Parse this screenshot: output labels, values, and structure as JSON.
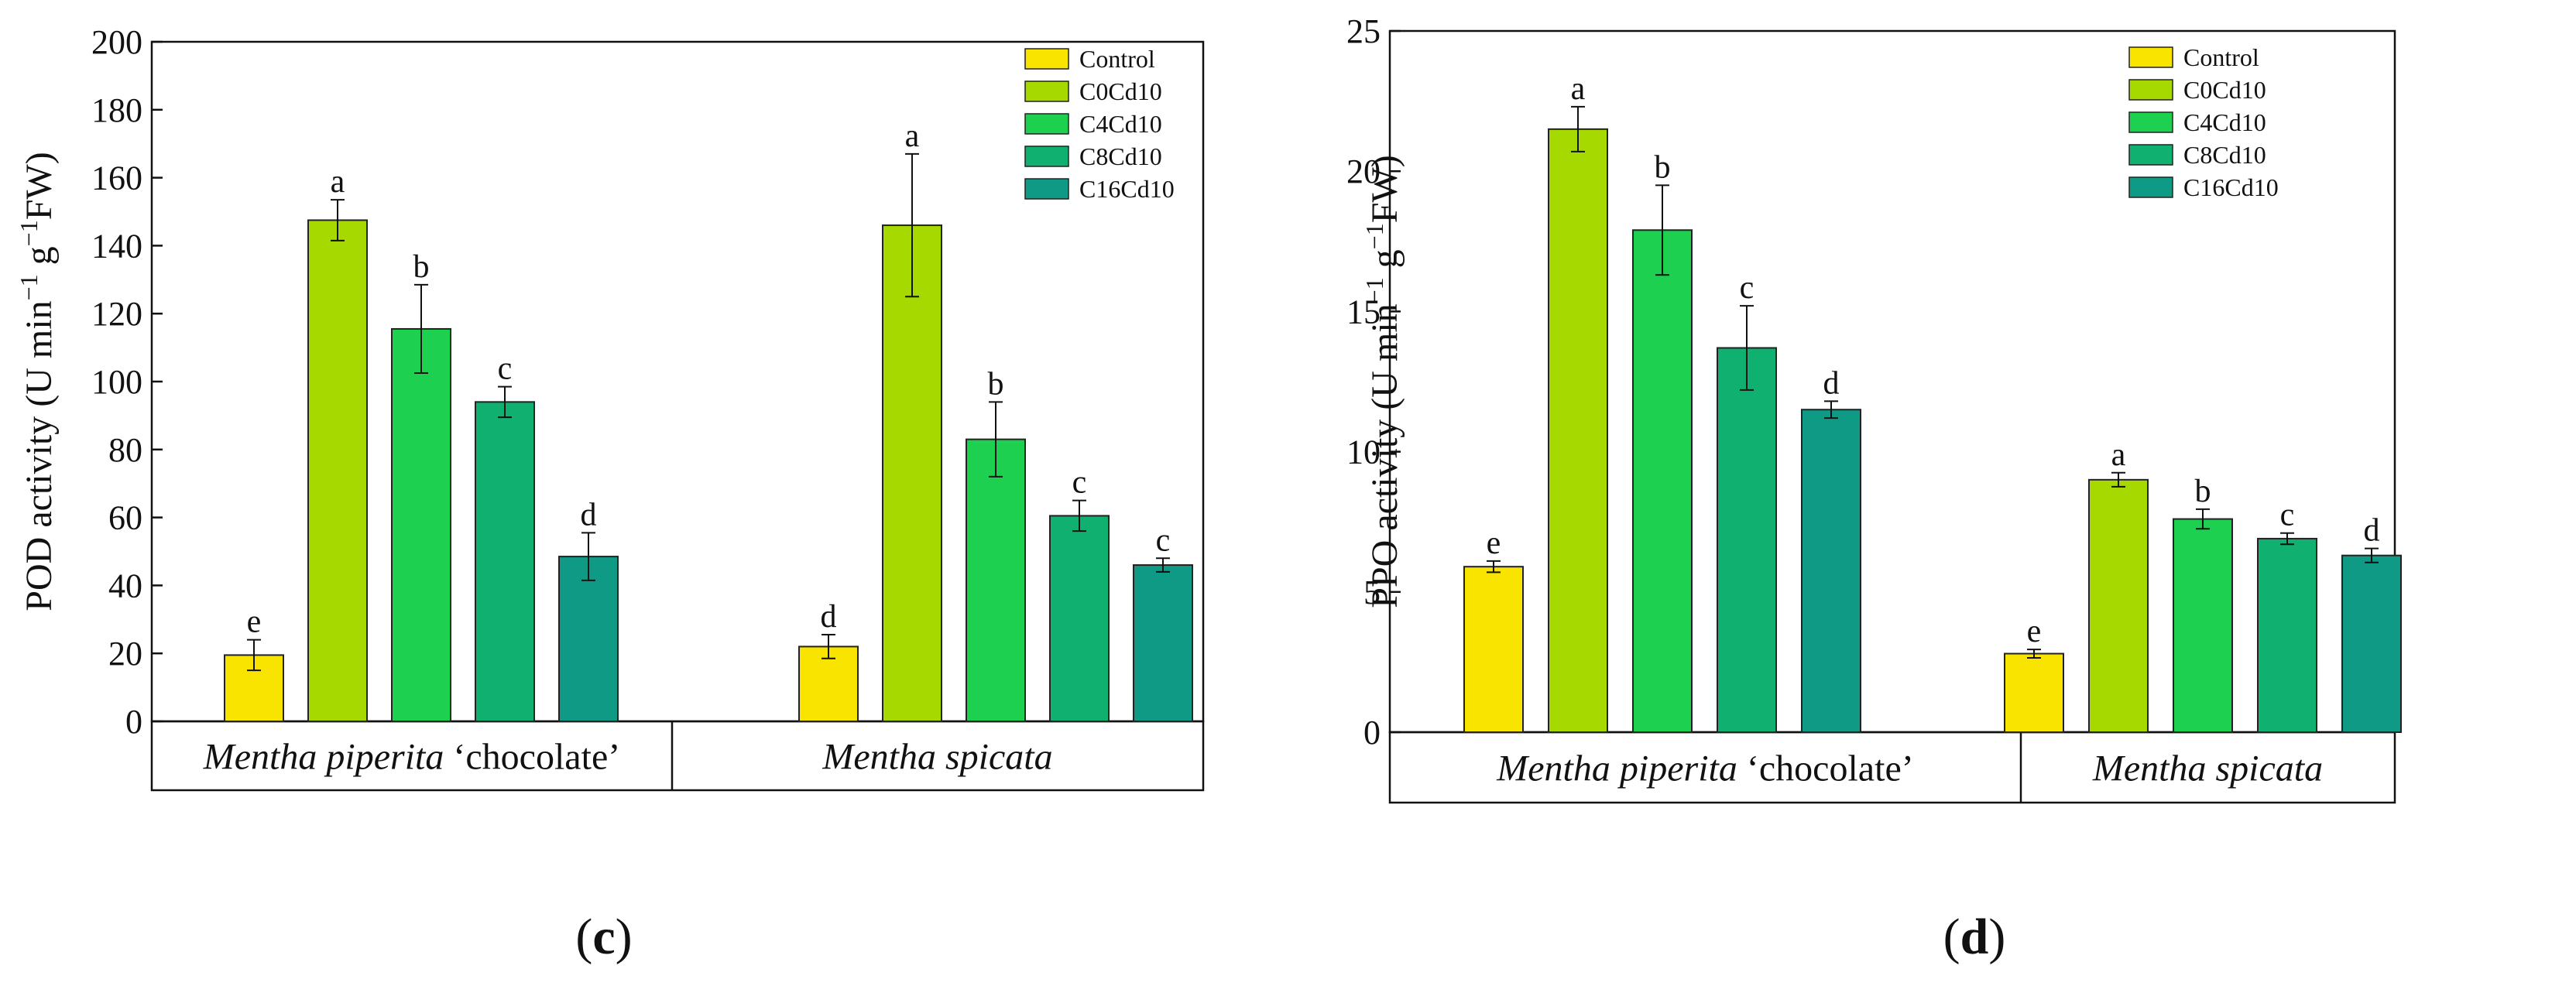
{
  "colors": {
    "Control": "#f9e400",
    "C0Cd10": "#a6d900",
    "C4Cd10": "#1ed050",
    "C8Cd10": "#0fb070",
    "C16Cd10": "#0f9a86",
    "bar_stroke": "#222222",
    "axis": "#111111"
  },
  "chart_data": [
    {
      "type": "bar",
      "panel_label": "c",
      "ylabel_main": "POD activity (U min",
      "ylabel_sup1": "−1",
      "ylabel_mid": " g",
      "ylabel_sup2": "−1",
      "ylabel_end": "FW)",
      "ylim": [
        0,
        200
      ],
      "yticks": [
        0,
        20,
        40,
        60,
        80,
        100,
        120,
        140,
        160,
        180,
        200
      ],
      "legend": [
        "Control",
        "C0Cd10",
        "C4Cd10",
        "C8Cd10",
        "C16Cd10"
      ],
      "groups": [
        {
          "italic": "Mentha piperita",
          "suffix": " ‘chocolate’",
          "values": [
            19.5,
            147.5,
            115.5,
            94,
            48.5
          ],
          "errors": [
            4.5,
            6,
            13,
            4.5,
            7
          ],
          "letters": [
            "e",
            "a",
            "b",
            "c",
            "d"
          ]
        },
        {
          "italic": "Mentha spicata",
          "suffix": "",
          "values": [
            22,
            146,
            83,
            60.5,
            46
          ],
          "errors": [
            3.5,
            21,
            11,
            4.5,
            2
          ],
          "letters": [
            "d",
            "a",
            "b",
            "c",
            "c"
          ]
        }
      ]
    },
    {
      "type": "bar",
      "panel_label": "d",
      "ylabel_main": "PPO activity (U min",
      "ylabel_sup1": "−1",
      "ylabel_mid": " g",
      "ylabel_sup2": "−1",
      "ylabel_end": "FW)",
      "ylim": [
        0,
        25
      ],
      "yticks": [
        0,
        5,
        10,
        15,
        20,
        25
      ],
      "legend": [
        "Control",
        "C0Cd10",
        "C4Cd10",
        "C8Cd10",
        "C16Cd10"
      ],
      "groups": [
        {
          "italic": "Mentha piperita",
          "suffix": " ‘chocolate’",
          "values": [
            5.9,
            21.5,
            17.9,
            13.7,
            11.5
          ],
          "errors": [
            0.2,
            0.8,
            1.6,
            1.5,
            0.3
          ],
          "letters": [
            "e",
            "a",
            "b",
            "c",
            "d"
          ]
        },
        {
          "italic": "Mentha spicata",
          "suffix": "",
          "values": [
            2.8,
            9.0,
            7.6,
            6.9,
            6.3
          ],
          "errors": [
            0.15,
            0.25,
            0.35,
            0.2,
            0.25
          ],
          "letters": [
            "e",
            "a",
            "b",
            "c",
            "d"
          ]
        }
      ]
    }
  ]
}
